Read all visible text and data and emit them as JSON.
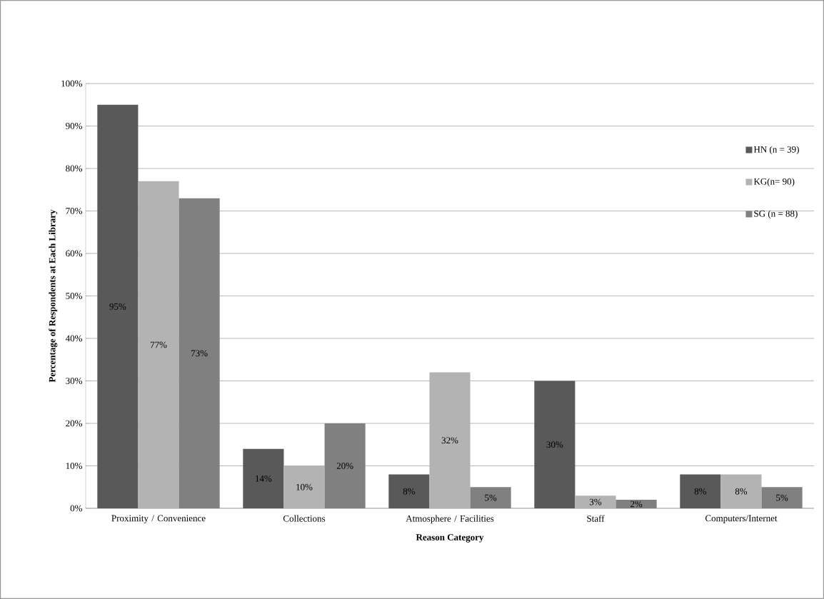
{
  "chart_data": {
    "type": "bar",
    "xlabel": "Reason Category",
    "ylabel": "Percentage of Respondents at Each Library",
    "categories": [
      "Proximity / Convenience",
      "Collections",
      "Atmosphere / Facilities",
      "Staff",
      "Computers/Internet"
    ],
    "series": [
      {
        "name": "HN (n = 39)",
        "color": "#595959",
        "values": [
          95,
          14,
          8,
          30,
          8
        ],
        "value_labels": [
          "95%",
          "14%",
          "8%",
          "30%",
          "8%"
        ]
      },
      {
        "name": "KG(n= 90)",
        "color": "#b3b3b3",
        "values": [
          77,
          10,
          32,
          3,
          8
        ],
        "value_labels": [
          "77%",
          "10%",
          "32%",
          "3%",
          "8%"
        ]
      },
      {
        "name": "SG (n = 88)",
        "color": "#808080",
        "values": [
          73,
          20,
          5,
          2,
          5
        ],
        "value_labels": [
          "73%",
          "20%",
          "5%",
          "2%",
          "5%"
        ]
      }
    ],
    "ylim": [
      0,
      100
    ],
    "yticks": [
      {
        "value": 0,
        "label": "0%"
      },
      {
        "value": 10,
        "label": "10%"
      },
      {
        "value": 20,
        "label": "20%"
      },
      {
        "value": 30,
        "label": "30%"
      },
      {
        "value": 40,
        "label": "40%"
      },
      {
        "value": 50,
        "label": "50%"
      },
      {
        "value": 60,
        "label": "60%"
      },
      {
        "value": 70,
        "label": "70%"
      },
      {
        "value": 80,
        "label": "80%"
      },
      {
        "value": 90,
        "label": "90%"
      },
      {
        "value": 100,
        "label": "100%"
      }
    ],
    "grid": "y",
    "legend": "right"
  }
}
